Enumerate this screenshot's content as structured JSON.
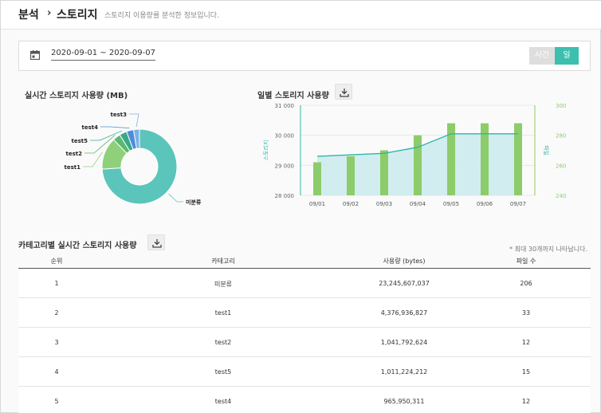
{
  "breadcrumb": {
    "section": "분석",
    "separator": "›",
    "page": "스토리지",
    "description": "스토리지 이용량를 분석한 정보입니다."
  },
  "filter": {
    "date_range": "2020-09-01 ~ 2020-09-07",
    "calendar_icon": "calendar-icon",
    "hour_label": "시간",
    "day_label": "일",
    "active_color": "#3cbfaf"
  },
  "realtime": {
    "title": "실시간 스토리지 사용량 (MB)",
    "chart_data": {
      "type": "pie",
      "categories": [
        "미분류",
        "test1",
        "test2",
        "test5",
        "test4",
        "test3"
      ],
      "values": [
        23245.6,
        4376.9,
        1041.8,
        1011.2,
        966.0,
        800.0
      ],
      "colors": [
        "#5bc5bb",
        "#8fd17a",
        "#5bb870",
        "#3aa88a",
        "#4a8fd6",
        "#7fb0e6"
      ]
    }
  },
  "daily": {
    "title": "일별 스토리지 사용량",
    "download_icon": "download-icon",
    "chart_data": {
      "type": "bar",
      "categories": [
        "09/01",
        "09/02",
        "09/03",
        "09/04",
        "09/05",
        "09/06",
        "09/07"
      ],
      "series": [
        {
          "values": [
            29300,
            29350,
            29400,
            29600,
            30050,
            30050,
            30050
          ],
          "color": "#2fb5aa"
        },
        {
          "values": [
            262,
            266,
            270,
            280,
            288,
            288,
            288
          ],
          "color": "#8dcc6a"
        }
      ],
      "ylabel": "스토리지",
      "y2label": "파일",
      "ylim": [
        28000,
        31000
      ],
      "y2lim": [
        240,
        300
      ],
      "yticks": [
        "28 000",
        "29 000",
        "30 000",
        "31 000"
      ],
      "y2ticks": [
        "240",
        "260",
        "280",
        "300"
      ],
      "grid": true
    }
  },
  "category": {
    "title": "카테고리별 실시간 스토리지 사용량",
    "note": "* 최대 30개까지 나타납니다.",
    "columns": [
      "순위",
      "카테고리",
      "사용량 (bytes)",
      "파일 수"
    ],
    "rows": [
      [
        "1",
        "미분류",
        "23,245,607,037",
        "206"
      ],
      [
        "2",
        "test1",
        "4,376,936,827",
        "33"
      ],
      [
        "3",
        "test2",
        "1,041,792,624",
        "12"
      ],
      [
        "4",
        "test5",
        "1,011,224,212",
        "15"
      ],
      [
        "5",
        "test4",
        "965,950,311",
        "12"
      ]
    ]
  }
}
